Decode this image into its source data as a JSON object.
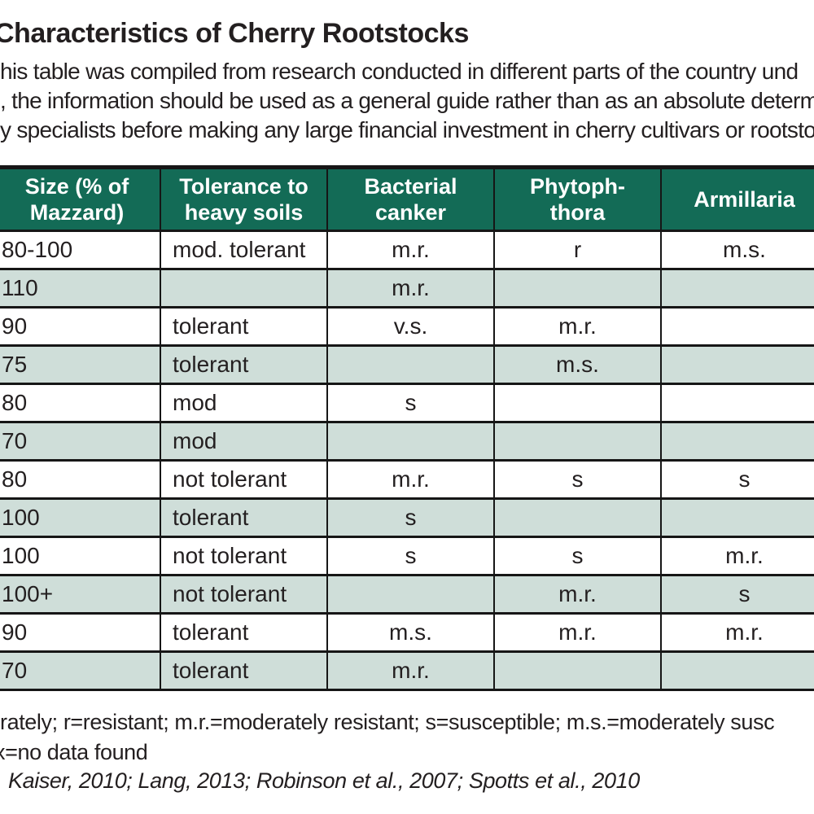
{
  "page": {
    "title": "Characteristics of Cherry Rootstocks",
    "intro_lines": [
      "his table was compiled from research conducted in different parts of the country und",
      ", the information should be used as a general guide rather than as an absolute determ",
      "y specialists before making any large financial investment in cherry cultivars or rootsto"
    ]
  },
  "table": {
    "columns": [
      "Size (% of\nMazzard)",
      "Tolerance to\nheavy soils",
      "Bacterial\ncanker",
      "Phytoph-\nthora",
      "Armillaria"
    ],
    "rows": [
      [
        "80-100",
        "mod. tolerant",
        "m.r.",
        "r",
        "m.s."
      ],
      [
        "110",
        "",
        "m.r.",
        "",
        ""
      ],
      [
        "90",
        "tolerant",
        "v.s.",
        "m.r.",
        ""
      ],
      [
        "75",
        "tolerant",
        "",
        "m.s.",
        ""
      ],
      [
        "80",
        "mod",
        "s",
        "",
        ""
      ],
      [
        "70",
        "mod",
        "",
        "",
        ""
      ],
      [
        "80",
        "not tolerant",
        "m.r.",
        "s",
        "s"
      ],
      [
        "100",
        "tolerant",
        "s",
        "",
        ""
      ],
      [
        "100",
        "not tolerant",
        "s",
        "s",
        "m.r."
      ],
      [
        "100+",
        "not tolerant",
        "",
        "m.r.",
        "s"
      ],
      [
        "90",
        "tolerant",
        "m.s.",
        "m.r.",
        "m.r."
      ],
      [
        "70",
        "tolerant",
        "m.r.",
        "",
        ""
      ]
    ]
  },
  "footnotes": {
    "legend_line1": "rately; r=resistant; m.r.=moderately resistant; s=susceptible; m.s.=moderately susc",
    "legend_line2": "x=no data found",
    "sources": "Kaiser, 2010; Lang, 2013; Robinson et al., 2007; Spotts et al., 2010"
  },
  "colors": {
    "header_bg": "#136b56",
    "row_alt_bg": "#cfded9",
    "text": "#231f20",
    "border": "#161616"
  }
}
